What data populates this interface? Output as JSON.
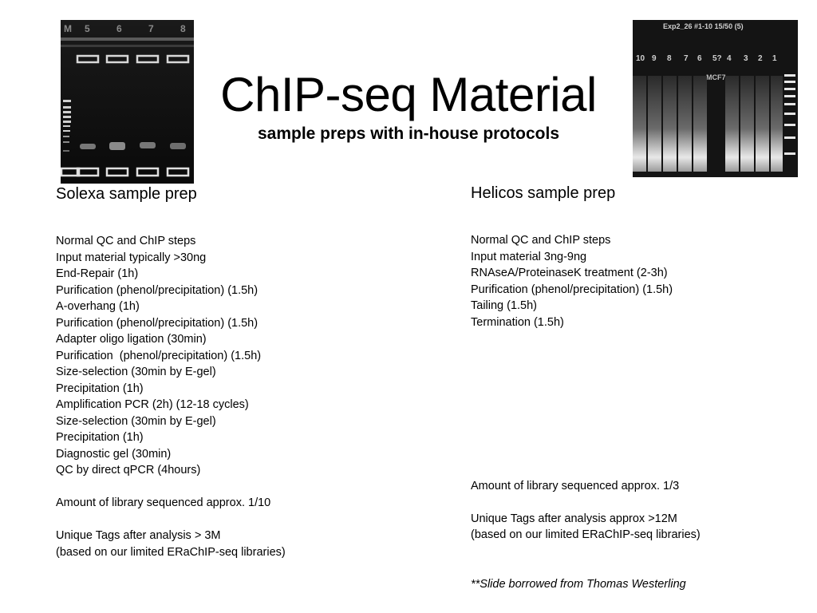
{
  "slide": {
    "title": "ChIP-seq Material",
    "subtitle": "sample preps with in-house protocols"
  },
  "gel_left": {
    "lane_labels": [
      "M",
      "5",
      "6",
      "7",
      "8"
    ]
  },
  "gel_right": {
    "header": "Exp2_26 #1-10 15/50 (5)",
    "lane_labels": [
      "10",
      "9",
      "8",
      "7",
      "6",
      "5?",
      "4",
      "3",
      "2",
      "1"
    ],
    "sample_label": "MCF7"
  },
  "left_column": {
    "heading": "Solexa sample prep",
    "steps": [
      "Normal QC and ChIP steps",
      "Input material typically >30ng",
      "End-Repair (1h)",
      "Purification (phenol/precipitation) (1.5h)",
      "A-overhang (1h)",
      "Purification (phenol/precipitation) (1.5h)",
      "Adapter oligo ligation (30min)",
      "Purification  (phenol/precipitation) (1.5h)",
      "Size-selection (30min by E-gel)",
      "Precipitation (1h)",
      "Amplification PCR (2h) (12-18 cycles)",
      "Size-selection (30min by E-gel)",
      "Precipitation (1h)",
      "Diagnostic gel (30min)",
      "QC by direct qPCR (4hours)"
    ],
    "amount": "Amount of library sequenced approx. 1/10",
    "tags": "Unique Tags after analysis > 3M",
    "note": "(based on our limited ERaChIP-seq libraries)"
  },
  "right_column": {
    "heading": "Helicos sample prep",
    "steps": [
      "Normal QC and ChIP steps",
      "Input material 3ng-9ng",
      "RNAseA/ProteinaseK treatment (2-3h)",
      "Purification (phenol/precipitation) (1.5h)",
      "Tailing (1.5h)",
      "Termination (1.5h)"
    ],
    "amount": "Amount of library sequenced approx. 1/3",
    "tags": "Unique Tags after analysis approx >12M",
    "note": "(based on our limited ERaChIP-seq libraries)",
    "credit": "**Slide borrowed from Thomas Westerling"
  }
}
